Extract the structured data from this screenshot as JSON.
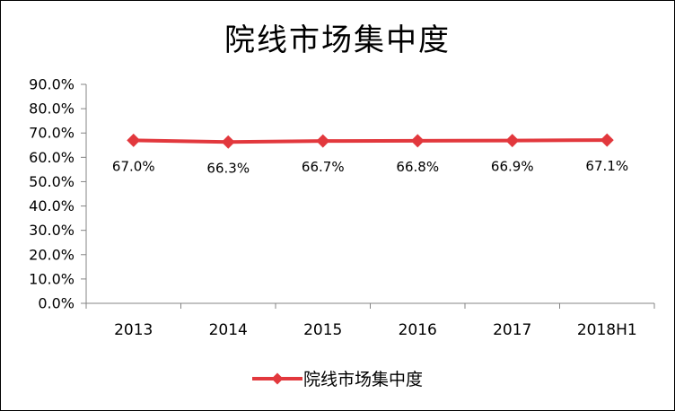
{
  "chart": {
    "title": "院线市场集中度"
  },
  "chart_data": {
    "type": "line",
    "title": "院线市场集中度",
    "categories": [
      "2013",
      "2014",
      "2015",
      "2016",
      "2017",
      "2018H1"
    ],
    "series": [
      {
        "name": "院线市场集中度",
        "values": [
          67.0,
          66.3,
          66.7,
          66.8,
          66.9,
          67.1
        ]
      }
    ],
    "data_labels": [
      "67.0%",
      "66.3%",
      "66.7%",
      "66.8%",
      "66.9%",
      "67.1%"
    ],
    "xlabel": "",
    "ylabel": "",
    "y_axis": {
      "min": 0,
      "max": 90,
      "step": 10,
      "tick_labels": [
        "0.0%",
        "10.0%",
        "20.0%",
        "30.0%",
        "40.0%",
        "50.0%",
        "60.0%",
        "70.0%",
        "80.0%",
        "90.0%"
      ]
    },
    "grid": false,
    "legend_position": "bottom",
    "colors": {
      "series": "#E2383D",
      "axis": "#848484",
      "text": "#000000",
      "background": "#FFFFFF",
      "border": "#000000"
    }
  }
}
